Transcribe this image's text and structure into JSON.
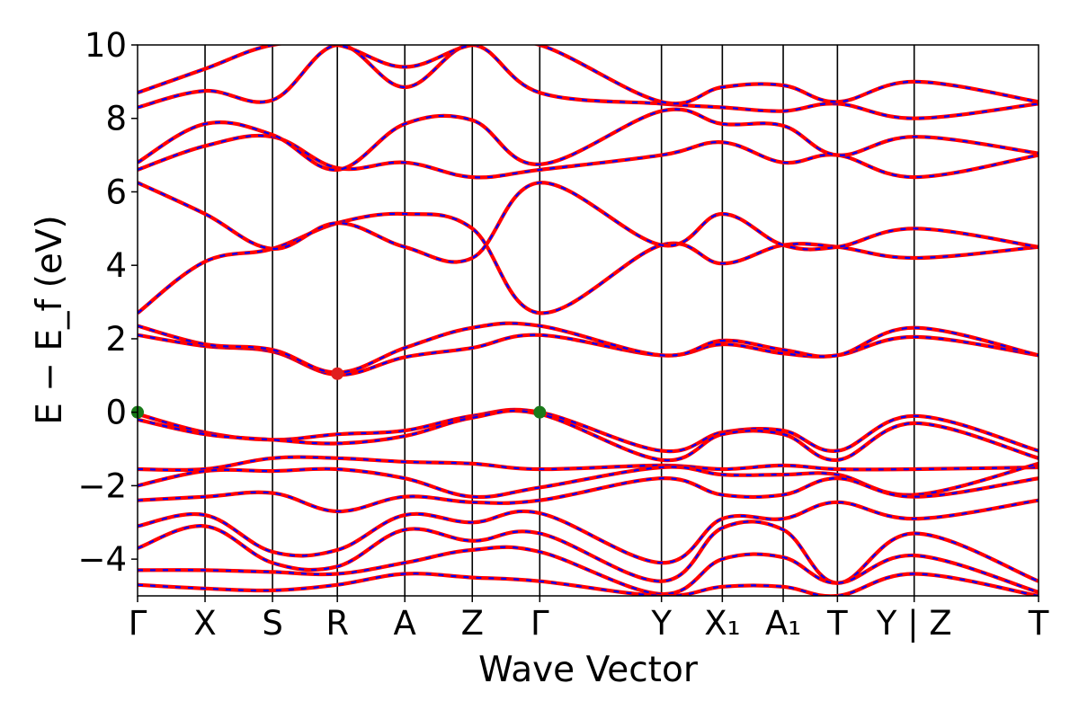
{
  "chart_data": {
    "type": "line",
    "title": "",
    "xlabel": "Wave Vector",
    "ylabel": "E − E_f (eV)",
    "ylim": [
      -5,
      10
    ],
    "yticks": [
      -4,
      -2,
      0,
      2,
      4,
      6,
      8,
      10
    ],
    "ytick_labels": [
      "−4",
      "−2",
      "0",
      "2",
      "4",
      "6",
      "8",
      "10"
    ],
    "xlim": [
      0,
      13.62
    ],
    "kpoints": [
      {
        "label": "Γ",
        "x": 0.0
      },
      {
        "label": "X",
        "x": 1.02
      },
      {
        "label": "S",
        "x": 2.04
      },
      {
        "label": "R",
        "x": 3.02
      },
      {
        "label": "A",
        "x": 4.04
      },
      {
        "label": "Z",
        "x": 5.06
      },
      {
        "label": "Γ",
        "x": 6.08
      },
      {
        "label": "Y",
        "x": 7.92
      },
      {
        "label": "X₁",
        "x": 8.84
      },
      {
        "label": "A₁",
        "x": 9.76
      },
      {
        "label": "T",
        "x": 10.58
      },
      {
        "label": "Y | Z",
        "x": 11.74
      },
      {
        "label": "T",
        "x": 13.62
      }
    ],
    "colors": {
      "series_1": "#ff0000",
      "series_2": "#0000ff",
      "vbm": "#1a7a1a",
      "cbm": "#e02020"
    },
    "band_edges": {
      "vbm": [
        {
          "x": 0.0,
          "y": 0.0
        },
        {
          "x": 6.08,
          "y": 0.0
        }
      ],
      "cbm": [
        {
          "x": 3.02,
          "y": 1.05
        }
      ]
    },
    "bands": [
      {
        "name": "",
        "points": [
          [
            0,
            -0.05
          ],
          [
            1.02,
            -0.55
          ],
          [
            2.04,
            -0.75
          ],
          [
            3.02,
            -0.6
          ],
          [
            4.04,
            -0.5
          ],
          [
            5.06,
            -0.1
          ],
          [
            6.08,
            0.0
          ],
          [
            7.92,
            -1.05
          ],
          [
            8.84,
            -0.55
          ],
          [
            9.76,
            -0.5
          ],
          [
            10.58,
            -1.05
          ],
          [
            11.74,
            -0.1
          ],
          [
            13.62,
            -1.05
          ]
        ]
      },
      {
        "name": "",
        "points": [
          [
            0,
            -0.2
          ],
          [
            1.02,
            -0.6
          ],
          [
            2.04,
            -0.75
          ],
          [
            3.02,
            -0.85
          ],
          [
            4.04,
            -0.65
          ],
          [
            5.06,
            -0.15
          ],
          [
            6.08,
            -0.05
          ],
          [
            7.92,
            -1.3
          ],
          [
            8.84,
            -0.6
          ],
          [
            9.76,
            -0.6
          ],
          [
            10.58,
            -1.3
          ],
          [
            11.74,
            -0.3
          ],
          [
            13.62,
            -1.25
          ]
        ]
      },
      {
        "name": "",
        "points": [
          [
            0,
            -1.55
          ],
          [
            1.02,
            -1.55
          ],
          [
            2.04,
            -1.25
          ],
          [
            3.02,
            -1.25
          ],
          [
            4.04,
            -1.35
          ],
          [
            5.06,
            -1.4
          ],
          [
            6.08,
            -1.55
          ],
          [
            7.92,
            -1.45
          ],
          [
            8.84,
            -1.55
          ],
          [
            9.76,
            -1.45
          ],
          [
            10.58,
            -1.55
          ],
          [
            11.74,
            -1.55
          ],
          [
            13.62,
            -1.5
          ]
        ]
      },
      {
        "name": "",
        "points": [
          [
            0,
            -2.0
          ],
          [
            1.02,
            -1.6
          ],
          [
            2.04,
            -1.6
          ],
          [
            3.02,
            -1.55
          ],
          [
            4.04,
            -1.8
          ],
          [
            5.06,
            -2.3
          ],
          [
            6.08,
            -2.05
          ],
          [
            7.92,
            -1.5
          ],
          [
            8.84,
            -1.7
          ],
          [
            9.76,
            -1.7
          ],
          [
            10.58,
            -1.7
          ],
          [
            11.74,
            -2.25
          ],
          [
            13.62,
            -1.4
          ]
        ]
      },
      {
        "name": "",
        "points": [
          [
            0,
            -2.4
          ],
          [
            1.02,
            -2.3
          ],
          [
            2.04,
            -2.2
          ],
          [
            3.02,
            -2.7
          ],
          [
            4.04,
            -2.3
          ],
          [
            5.06,
            -2.45
          ],
          [
            6.08,
            -2.4
          ],
          [
            7.92,
            -1.8
          ],
          [
            8.84,
            -2.25
          ],
          [
            9.76,
            -2.25
          ],
          [
            10.58,
            -1.8
          ],
          [
            11.74,
            -2.3
          ],
          [
            13.62,
            -1.8
          ]
        ]
      },
      {
        "name": "",
        "points": [
          [
            0,
            -3.1
          ],
          [
            1.02,
            -2.8
          ],
          [
            2.04,
            -3.8
          ],
          [
            3.02,
            -3.75
          ],
          [
            4.04,
            -2.8
          ],
          [
            5.06,
            -3.0
          ],
          [
            6.08,
            -2.75
          ],
          [
            7.92,
            -4.1
          ],
          [
            8.84,
            -2.9
          ],
          [
            9.76,
            -2.9
          ],
          [
            10.58,
            -2.45
          ],
          [
            11.74,
            -2.9
          ],
          [
            13.62,
            -2.4
          ]
        ]
      },
      {
        "name": "",
        "points": [
          [
            0,
            -3.7
          ],
          [
            1.02,
            -3.1
          ],
          [
            2.04,
            -4.1
          ],
          [
            3.02,
            -4.2
          ],
          [
            4.04,
            -3.2
          ],
          [
            5.06,
            -3.5
          ],
          [
            6.08,
            -3.3
          ],
          [
            7.92,
            -4.6
          ],
          [
            8.84,
            -3.15
          ],
          [
            9.76,
            -3.2
          ],
          [
            10.58,
            -4.65
          ],
          [
            11.74,
            -3.3
          ],
          [
            13.62,
            -4.6
          ]
        ]
      },
      {
        "name": "",
        "points": [
          [
            0,
            -4.3
          ],
          [
            1.02,
            -4.3
          ],
          [
            2.04,
            -4.35
          ],
          [
            3.02,
            -4.4
          ],
          [
            4.04,
            -4.1
          ],
          [
            5.06,
            -3.75
          ],
          [
            6.08,
            -3.8
          ],
          [
            7.92,
            -4.95
          ],
          [
            8.84,
            -4.0
          ],
          [
            9.76,
            -3.95
          ],
          [
            10.58,
            -4.65
          ],
          [
            11.74,
            -3.9
          ],
          [
            13.62,
            -4.9
          ]
        ]
      },
      {
        "name": "",
        "points": [
          [
            0,
            -4.7
          ],
          [
            1.02,
            -4.8
          ],
          [
            2.04,
            -4.85
          ],
          [
            3.02,
            -4.7
          ],
          [
            4.04,
            -4.4
          ],
          [
            5.06,
            -4.5
          ],
          [
            6.08,
            -4.6
          ],
          [
            7.92,
            -5.0
          ],
          [
            8.84,
            -4.75
          ],
          [
            9.76,
            -4.75
          ],
          [
            10.58,
            -5.0
          ],
          [
            11.74,
            -4.4
          ],
          [
            13.62,
            -5.0
          ]
        ]
      },
      {
        "name": "",
        "points": [
          [
            0,
            2.1
          ],
          [
            1.02,
            1.8
          ],
          [
            2.04,
            1.65
          ],
          [
            3.02,
            1.02
          ],
          [
            4.04,
            1.5
          ],
          [
            5.06,
            1.75
          ],
          [
            6.08,
            2.1
          ],
          [
            7.92,
            1.55
          ],
          [
            8.84,
            1.85
          ],
          [
            9.76,
            1.6
          ],
          [
            10.58,
            1.55
          ],
          [
            11.74,
            2.05
          ],
          [
            13.62,
            1.55
          ]
        ]
      },
      {
        "name": "",
        "points": [
          [
            0,
            2.35
          ],
          [
            1.02,
            1.85
          ],
          [
            2.04,
            1.7
          ],
          [
            3.02,
            1.08
          ],
          [
            4.04,
            1.75
          ],
          [
            5.06,
            2.3
          ],
          [
            6.08,
            2.35
          ],
          [
            7.92,
            1.55
          ],
          [
            8.84,
            1.95
          ],
          [
            9.76,
            1.7
          ],
          [
            10.58,
            1.55
          ],
          [
            11.74,
            2.3
          ],
          [
            13.62,
            1.55
          ]
        ]
      },
      {
        "name": "",
        "points": [
          [
            0,
            2.7
          ],
          [
            1.02,
            4.1
          ],
          [
            2.04,
            4.45
          ],
          [
            3.02,
            5.15
          ],
          [
            4.04,
            5.4
          ],
          [
            5.06,
            5.0
          ],
          [
            6.08,
            2.7
          ],
          [
            7.92,
            4.55
          ],
          [
            8.84,
            4.05
          ],
          [
            9.76,
            4.55
          ],
          [
            10.58,
            4.5
          ],
          [
            11.74,
            4.2
          ],
          [
            13.62,
            4.5
          ]
        ]
      },
      {
        "name": "",
        "points": [
          [
            0,
            6.25
          ],
          [
            1.02,
            5.4
          ],
          [
            2.04,
            4.45
          ],
          [
            3.02,
            5.15
          ],
          [
            4.04,
            4.5
          ],
          [
            5.06,
            4.2
          ],
          [
            6.08,
            6.25
          ],
          [
            7.92,
            4.55
          ],
          [
            8.84,
            5.4
          ],
          [
            9.76,
            4.55
          ],
          [
            10.58,
            4.5
          ],
          [
            11.74,
            5.0
          ],
          [
            13.62,
            4.5
          ]
        ]
      },
      {
        "name": "",
        "points": [
          [
            0,
            6.6
          ],
          [
            1.02,
            7.25
          ],
          [
            2.04,
            7.5
          ],
          [
            3.02,
            6.65
          ],
          [
            4.04,
            6.8
          ],
          [
            5.06,
            6.4
          ],
          [
            6.08,
            6.6
          ],
          [
            7.92,
            7.0
          ],
          [
            8.84,
            7.35
          ],
          [
            9.76,
            6.8
          ],
          [
            10.58,
            7.0
          ],
          [
            11.74,
            6.4
          ],
          [
            13.62,
            7.0
          ]
        ]
      },
      {
        "name": "",
        "points": [
          [
            0,
            6.8
          ],
          [
            1.02,
            7.85
          ],
          [
            2.04,
            7.55
          ],
          [
            3.02,
            6.6
          ],
          [
            4.04,
            7.85
          ],
          [
            5.06,
            7.95
          ],
          [
            6.08,
            6.75
          ],
          [
            7.92,
            8.2
          ],
          [
            8.84,
            7.85
          ],
          [
            9.76,
            7.8
          ],
          [
            10.58,
            7.0
          ],
          [
            11.74,
            7.5
          ],
          [
            13.62,
            7.05
          ]
        ]
      },
      {
        "name": "",
        "points": [
          [
            0,
            8.3
          ],
          [
            1.02,
            8.75
          ],
          [
            2.04,
            8.5
          ],
          [
            3.02,
            10.0
          ],
          [
            4.04,
            8.85
          ],
          [
            5.06,
            10.0
          ],
          [
            6.08,
            8.7
          ],
          [
            7.92,
            8.4
          ],
          [
            8.84,
            8.3
          ],
          [
            9.76,
            8.2
          ],
          [
            10.58,
            8.4
          ],
          [
            11.74,
            8.0
          ],
          [
            13.62,
            8.4
          ]
        ]
      },
      {
        "name": "",
        "points": [
          [
            0,
            8.7
          ],
          [
            1.02,
            9.35
          ],
          [
            2.04,
            10.0
          ],
          [
            3.02,
            10.0
          ],
          [
            4.04,
            9.4
          ],
          [
            5.06,
            10.0
          ],
          [
            6.08,
            10.0
          ],
          [
            7.92,
            8.45
          ],
          [
            8.84,
            8.85
          ],
          [
            9.76,
            8.9
          ],
          [
            10.58,
            8.45
          ],
          [
            11.74,
            9.0
          ],
          [
            13.62,
            8.45
          ]
        ]
      }
    ]
  }
}
